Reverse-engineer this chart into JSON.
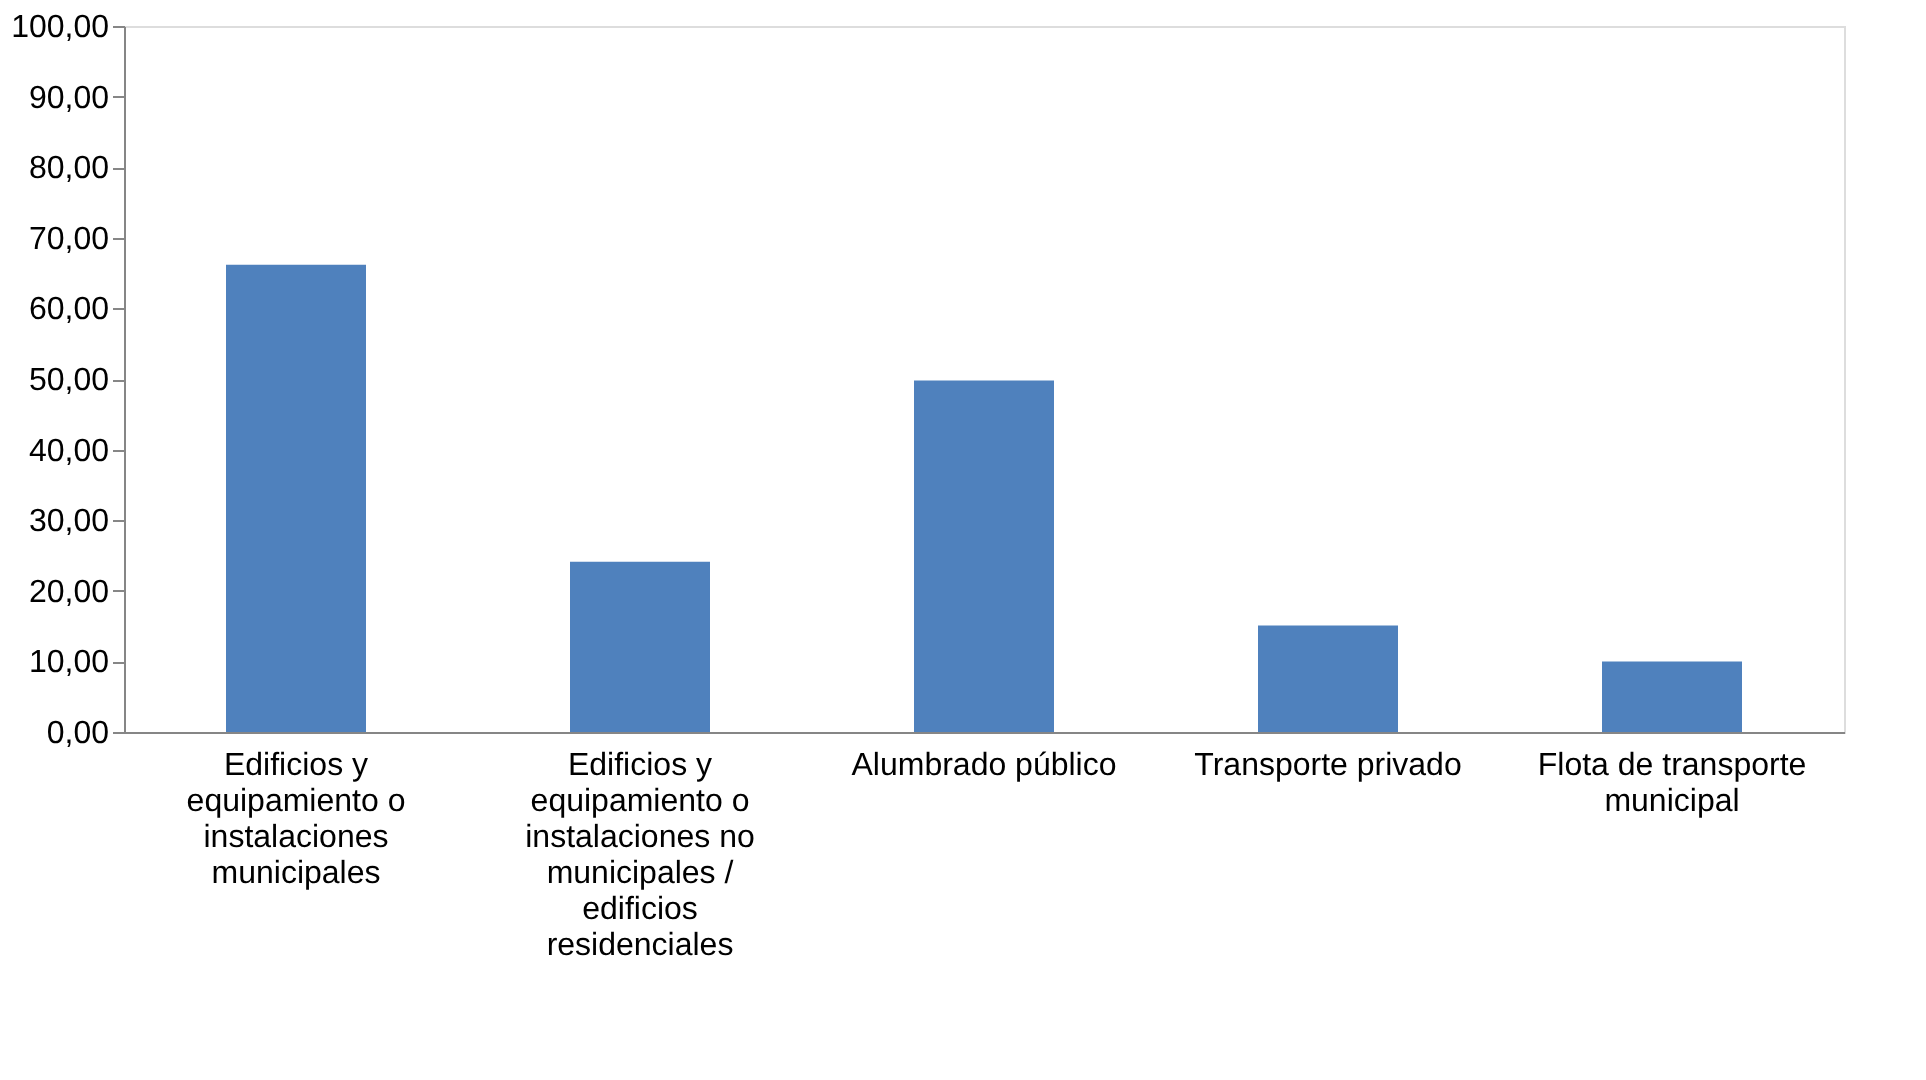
{
  "chart_data": {
    "type": "bar",
    "categories": [
      "Edificios y equipamiento o instalaciones municipales",
      "Edificios y equipamiento o instalaciones no municipales / edificios residenciales",
      "Alumbrado público",
      "Transporte privado",
      "Flota de transporte municipal"
    ],
    "values": [
      66.2,
      24.1,
      49.8,
      15.1,
      10.0
    ],
    "color": "#4f81bd",
    "ylim": [
      0,
      100
    ],
    "yticks": [
      {
        "value": 0,
        "label": "0,00"
      },
      {
        "value": 10,
        "label": "10,00"
      },
      {
        "value": 20,
        "label": "20,00"
      },
      {
        "value": 30,
        "label": "30,00"
      },
      {
        "value": 40,
        "label": "40,00"
      },
      {
        "value": 50,
        "label": "50,00"
      },
      {
        "value": 60,
        "label": "60,00"
      },
      {
        "value": 70,
        "label": "70,00"
      },
      {
        "value": 80,
        "label": "80,00"
      },
      {
        "value": 90,
        "label": "90,00"
      },
      {
        "value": 100,
        "label": "100,00"
      }
    ],
    "grid": false
  }
}
